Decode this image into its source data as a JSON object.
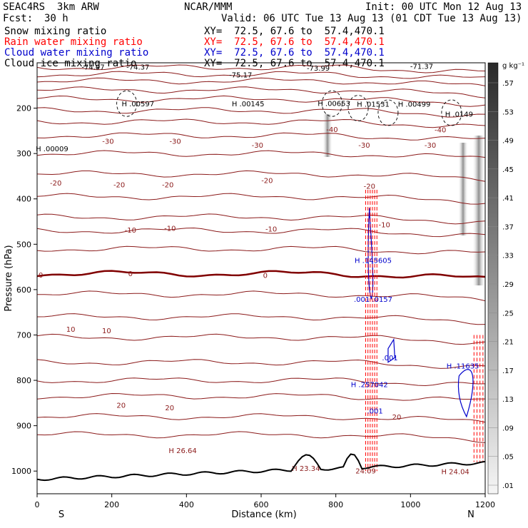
{
  "header": {
    "model": "SEAC4RS  3km ARW",
    "org": "NCAR/MMM",
    "init": "Init: 00 UTC Mon 12 Aug 13",
    "fcst_label": "Fcst:",
    "fcst_value": "30 h",
    "valid": "Valid: 06 UTC Tue 13 Aug 13 (01 CDT Tue 13 Aug 13)",
    "fields": [
      {
        "name": "Snow mixing ratio",
        "xy": "XY=  72.5, 67.6 to  57.4,470.1",
        "color": "#000000"
      },
      {
        "name": "Rain water mixing ratio",
        "xy": "XY=  72.5, 67.6 to  57.4,470.1",
        "color": "#ff0000"
      },
      {
        "name": "Cloud water mixing ratio",
        "xy": "XY=  72.5, 67.6 to  57.4,470.1",
        "color": "#0000cc"
      },
      {
        "name": "Cloud ice mixing ratio",
        "xy": "XY=  72.5, 67.6 to  57.4,470.1",
        "color": "#000000"
      }
    ]
  },
  "chart_data": {
    "type": "cross-section",
    "xlabel": "Distance (km)",
    "ylabel": "Pressure (hPa)",
    "xlim": [
      0,
      1200
    ],
    "ylim": [
      1050,
      100
    ],
    "x_ticks": [
      "0",
      "200",
      "400",
      "600",
      "800",
      "1000",
      "1200"
    ],
    "y_ticks": [
      "200",
      "300",
      "400",
      "500",
      "600",
      "700",
      "800",
      "900",
      "1000"
    ],
    "x_endpoints": {
      "left": "S",
      "right": "N"
    },
    "colorbar": {
      "unit": "g kg⁻¹",
      "labels": [
        ".01",
        ".05",
        ".09",
        ".13",
        ".17",
        ".21",
        ".25",
        ".29",
        ".33",
        ".37",
        ".41",
        ".45",
        ".49",
        ".53",
        ".57"
      ]
    },
    "temperature_contours": [
      {
        "label": "-30",
        "positions": [
          [
            190,
            272
          ],
          [
            370,
            272
          ],
          [
            590,
            281
          ],
          [
            876,
            281
          ],
          [
            1053,
            281
          ]
        ]
      },
      {
        "label": "-20",
        "positions": [
          [
            50,
            364
          ],
          [
            220,
            368
          ],
          [
            350,
            368
          ],
          [
            616,
            359
          ],
          [
            890,
            371
          ]
        ]
      },
      {
        "label": "-10",
        "positions": [
          [
            250,
            468
          ],
          [
            356,
            464
          ],
          [
            627,
            466
          ],
          [
            930,
            456
          ]
        ]
      },
      {
        "label": "0",
        "positions": [
          [
            10,
            567
          ],
          [
            250,
            564
          ],
          [
            611,
            568
          ]
        ]
      },
      {
        "label": "10",
        "positions": [
          [
            90,
            687
          ],
          [
            186,
            690
          ]
        ]
      },
      {
        "label": "20",
        "positions": [
          [
            225,
            854
          ],
          [
            355,
            860
          ],
          [
            963,
            880
          ]
        ]
      },
      {
        "label": "-40",
        "positions": [
          [
            790,
            246
          ],
          [
            1080,
            247
          ]
        ]
      }
    ],
    "annotations": [
      {
        "text": "-74.97",
        "x": 150,
        "y": 115
      },
      {
        "text": "-74.37",
        "x": 270,
        "y": 115
      },
      {
        "text": "-75.17",
        "x": 545,
        "y": 132
      },
      {
        "text": "-73.99",
        "x": 753,
        "y": 117
      },
      {
        "text": "-71.37",
        "x": 1030,
        "y": 113
      },
      {
        "text": "H .00597",
        "x": 270,
        "y": 196
      },
      {
        "text": "H .00145",
        "x": 565,
        "y": 196
      },
      {
        "text": "H .00653",
        "x": 795,
        "y": 195
      },
      {
        "text": "H .01531",
        "x": 900,
        "y": 197
      },
      {
        "text": "H .00499",
        "x": 1010,
        "y": 197
      },
      {
        "text": "H .0149",
        "x": 1130,
        "y": 219
      },
      {
        "text": "H .00009",
        "x": 40,
        "y": 295
      },
      {
        "text": "H .145605",
        "x": 900,
        "y": 541
      },
      {
        "text": ".001 .0157",
        "x": 900,
        "y": 627
      },
      {
        "text": ".001",
        "x": 945,
        "y": 756
      },
      {
        "text": "H .11635",
        "x": 1140,
        "y": 774
      },
      {
        "text": "H .257042",
        "x": 890,
        "y": 815
      },
      {
        "text": ".001",
        "x": 905,
        "y": 873
      },
      {
        "text": "H 26.64",
        "x": 390,
        "y": 960
      },
      {
        "text": "H 23.34",
        "x": 720,
        "y": 1000
      },
      {
        "text": "24.09",
        "x": 880,
        "y": 1005
      },
      {
        "text": "H 24.04",
        "x": 1120,
        "y": 1007
      }
    ]
  }
}
